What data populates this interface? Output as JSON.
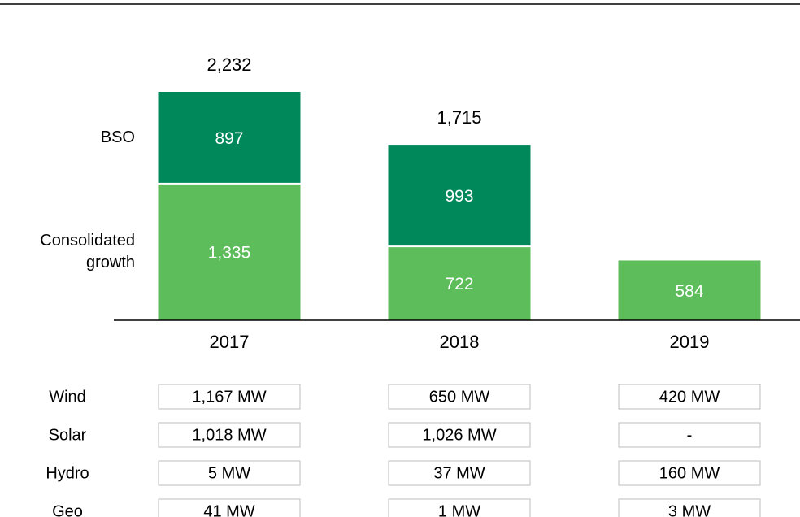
{
  "chart_data": {
    "type": "stacked-bar",
    "categories": [
      "2017",
      "2018",
      "2019"
    ],
    "series": [
      {
        "name": "Consolidated growth",
        "color": "#5cbd5a",
        "values": [
          1335,
          722,
          584
        ],
        "value_labels": [
          "1,335",
          "722",
          "584"
        ]
      },
      {
        "name": "BSO",
        "color": "#00875a",
        "values": [
          897,
          993,
          null
        ],
        "value_labels": [
          "897",
          "993",
          null
        ]
      }
    ],
    "totals": [
      2232,
      1715,
      null
    ],
    "total_labels": [
      "2,232",
      "1,715",
      null
    ]
  },
  "table": {
    "rows": [
      {
        "label": "Wind",
        "cells": [
          "1,167 MW",
          "650 MW",
          "420 MW"
        ]
      },
      {
        "label": "Solar",
        "cells": [
          "1,018 MW",
          "1,026 MW",
          "-"
        ]
      },
      {
        "label": "Hydro",
        "cells": [
          "5 MW",
          "37 MW",
          "160 MW"
        ]
      },
      {
        "label": "Geo",
        "cells": [
          "41 MW",
          "1 MW",
          "3 MW"
        ]
      }
    ]
  }
}
